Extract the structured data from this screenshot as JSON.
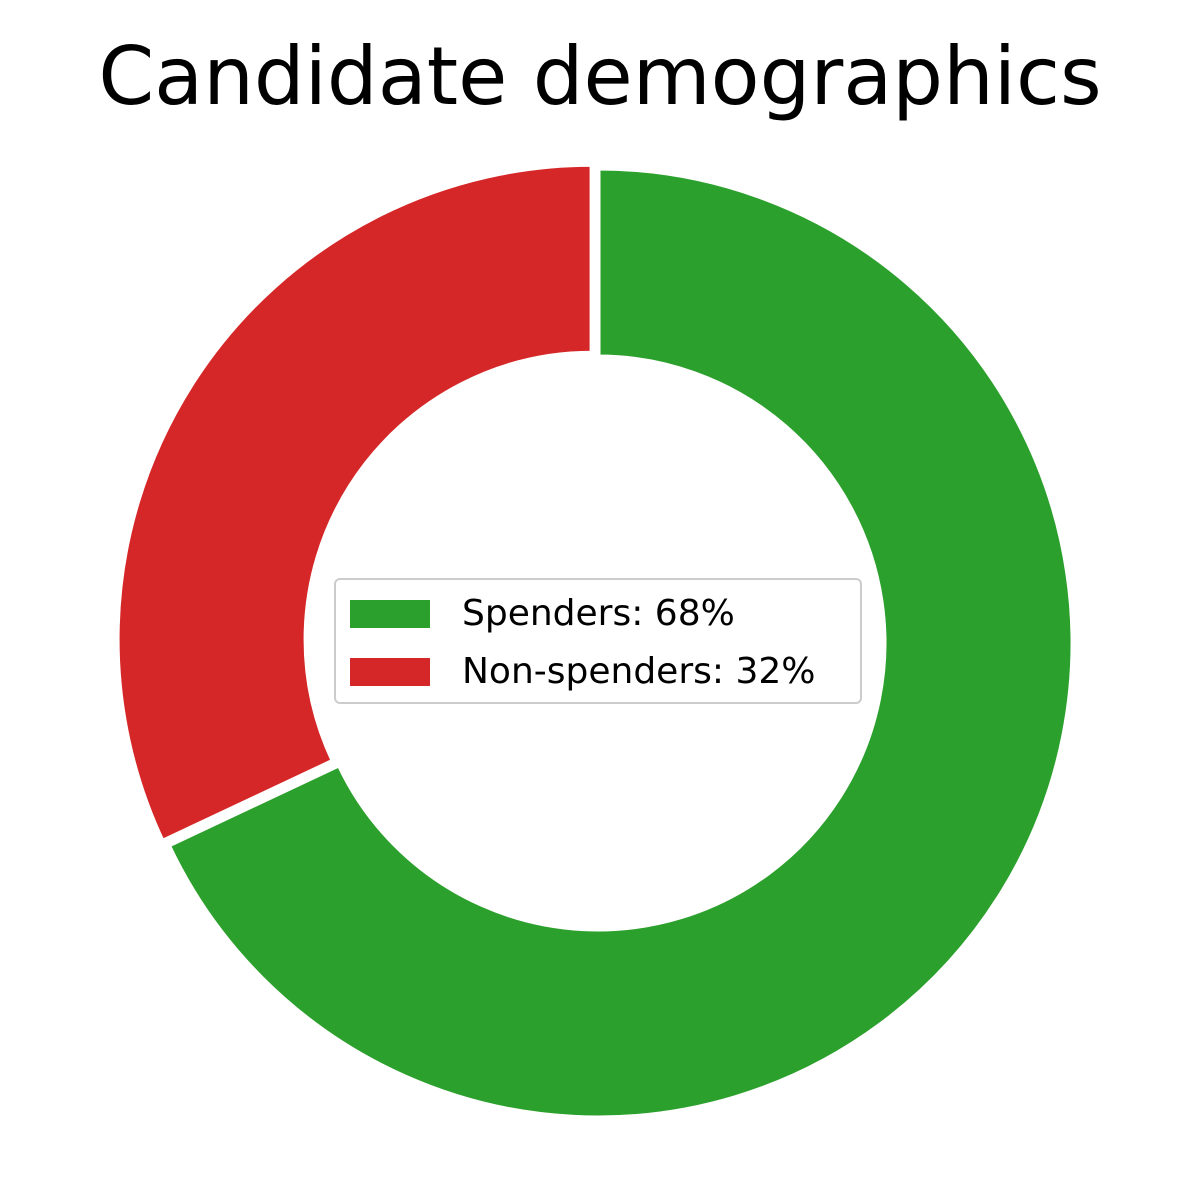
{
  "chart_data": {
    "type": "pie",
    "variant": "donut",
    "title": "Candidate demographics",
    "slices": [
      {
        "label": "Spenders",
        "value": 68,
        "color": "#2ca02c",
        "legend_text": "Spenders: 68%"
      },
      {
        "label": "Non-spenders",
        "value": 32,
        "color": "#d62728",
        "legend_text": "Non-spenders: 32%"
      }
    ],
    "start_angle_deg": 90,
    "direction": "clockwise",
    "exploded_slice": "Non-spenders",
    "slice_edge_color": "#ffffff",
    "legend_location": "center"
  }
}
